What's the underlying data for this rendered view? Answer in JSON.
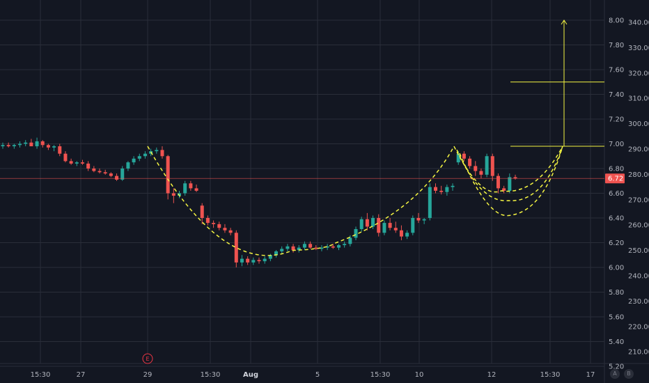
{
  "chart_data": {
    "type": "candlestick",
    "symbol_price_last": "6.72",
    "colors": {
      "background": "#131722",
      "up": "#26a69a",
      "down": "#ef5350",
      "annotation": "#f5f542",
      "price_line": "#ef5350",
      "grid": "#2a2e39",
      "axis_text": "#b2b5be"
    },
    "x_axis": {
      "tick_labels": [
        "15:30",
        "27",
        "29",
        "15:30",
        "Aug",
        "5",
        "15:30",
        "10",
        "12",
        "15:30",
        "17"
      ],
      "bold_labels": [
        "Aug"
      ]
    },
    "y_axis_inner": {
      "ticks": [
        "8.00",
        "7.80",
        "7.60",
        "7.40",
        "7.20",
        "7.00",
        "6.80",
        "6.60",
        "6.40",
        "6.20",
        "6.00",
        "5.80",
        "5.60",
        "5.40",
        "5.20"
      ],
      "range": [
        5.18,
        8.08
      ]
    },
    "y_axis_outer": {
      "ticks": [
        "340.00",
        "330.00",
        "320.00",
        "310.00",
        "300.00",
        "290.00",
        "280.00",
        "270.00",
        "260.00",
        "250.00",
        "240.00",
        "230.00",
        "220.00",
        "210.00"
      ]
    },
    "last_price": 6.72,
    "candles": [
      [
        6.98,
        7.01,
        6.96,
        6.99
      ],
      [
        6.99,
        7.01,
        6.97,
        6.98
      ],
      [
        6.98,
        7.0,
        6.96,
        6.99
      ],
      [
        6.99,
        7.02,
        6.97,
        7.0
      ],
      [
        7.0,
        7.03,
        6.98,
        7.01
      ],
      [
        7.01,
        7.04,
        6.99,
        6.98
      ],
      [
        6.98,
        7.05,
        6.96,
        7.02
      ],
      [
        7.02,
        7.03,
        6.97,
        6.99
      ],
      [
        6.99,
        7.0,
        6.95,
        6.97
      ],
      [
        6.97,
        6.99,
        6.94,
        6.98
      ],
      [
        6.98,
        7.0,
        6.9,
        6.92
      ],
      [
        6.92,
        6.94,
        6.85,
        6.86
      ],
      [
        6.86,
        6.88,
        6.83,
        6.84
      ],
      [
        6.84,
        6.86,
        6.82,
        6.85
      ],
      [
        6.85,
        6.87,
        6.83,
        6.84
      ],
      [
        6.84,
        6.86,
        6.78,
        6.8
      ],
      [
        6.8,
        6.82,
        6.77,
        6.78
      ],
      [
        6.78,
        6.8,
        6.76,
        6.77
      ],
      [
        6.77,
        6.79,
        6.75,
        6.76
      ],
      [
        6.76,
        6.77,
        6.73,
        6.74
      ],
      [
        6.74,
        6.76,
        6.7,
        6.71
      ],
      [
        6.71,
        6.82,
        6.7,
        6.8
      ],
      [
        6.8,
        6.86,
        6.78,
        6.85
      ],
      [
        6.85,
        6.9,
        6.83,
        6.88
      ],
      [
        6.88,
        6.92,
        6.86,
        6.9
      ],
      [
        6.9,
        6.94,
        6.88,
        6.92
      ],
      [
        6.92,
        6.96,
        6.9,
        6.94
      ],
      [
        6.94,
        6.97,
        6.92,
        6.95
      ],
      [
        6.95,
        6.98,
        6.88,
        6.9
      ],
      [
        6.9,
        6.91,
        6.55,
        6.6
      ],
      [
        6.6,
        6.64,
        6.52,
        6.58
      ],
      [
        6.58,
        6.62,
        6.56,
        6.6
      ],
      [
        6.6,
        6.7,
        6.58,
        6.68
      ],
      [
        6.68,
        6.7,
        6.62,
        6.64
      ],
      [
        6.64,
        6.67,
        6.61,
        6.62
      ],
      [
        6.5,
        6.52,
        6.35,
        6.4
      ],
      [
        6.4,
        6.42,
        6.34,
        6.36
      ],
      [
        6.36,
        6.38,
        6.32,
        6.35
      ],
      [
        6.35,
        6.37,
        6.3,
        6.32
      ],
      [
        6.32,
        6.35,
        6.28,
        6.3
      ],
      [
        6.3,
        6.32,
        6.26,
        6.28
      ],
      [
        6.28,
        6.3,
        6.0,
        6.04
      ],
      [
        6.04,
        6.1,
        6.01,
        6.07
      ],
      [
        6.07,
        6.09,
        6.02,
        6.04
      ],
      [
        6.04,
        6.08,
        6.02,
        6.06
      ],
      [
        6.06,
        6.08,
        6.03,
        6.05
      ],
      [
        6.05,
        6.09,
        6.03,
        6.07
      ],
      [
        6.07,
        6.11,
        6.05,
        6.1
      ],
      [
        6.1,
        6.14,
        6.08,
        6.13
      ],
      [
        6.13,
        6.17,
        6.11,
        6.15
      ],
      [
        6.15,
        6.19,
        6.13,
        6.17
      ],
      [
        6.17,
        6.19,
        6.12,
        6.14
      ],
      [
        6.14,
        6.18,
        6.12,
        6.16
      ],
      [
        6.16,
        6.21,
        6.14,
        6.19
      ],
      [
        6.19,
        6.21,
        6.15,
        6.16
      ],
      [
        6.16,
        6.18,
        6.14,
        6.15
      ],
      [
        6.15,
        6.18,
        6.13,
        6.16
      ],
      [
        6.16,
        6.19,
        6.14,
        6.17
      ],
      [
        6.17,
        6.19,
        6.15,
        6.16
      ],
      [
        6.16,
        6.19,
        6.14,
        6.18
      ],
      [
        6.18,
        6.21,
        6.16,
        6.19
      ],
      [
        6.19,
        6.26,
        6.17,
        6.24
      ],
      [
        6.24,
        6.33,
        6.22,
        6.31
      ],
      [
        6.31,
        6.41,
        6.29,
        6.39
      ],
      [
        6.39,
        6.44,
        6.3,
        6.33
      ],
      [
        6.33,
        6.42,
        6.31,
        6.4
      ],
      [
        6.4,
        6.43,
        6.25,
        6.28
      ],
      [
        6.28,
        6.38,
        6.26,
        6.36
      ],
      [
        6.36,
        6.4,
        6.3,
        6.32
      ],
      [
        6.32,
        6.37,
        6.28,
        6.3
      ],
      [
        6.3,
        6.34,
        6.22,
        6.25
      ],
      [
        6.25,
        6.3,
        6.23,
        6.28
      ],
      [
        6.28,
        6.42,
        6.26,
        6.4
      ],
      [
        6.4,
        6.44,
        6.36,
        6.38
      ],
      [
        6.38,
        6.4,
        6.35,
        6.39
      ],
      [
        6.4,
        6.68,
        6.38,
        6.65
      ],
      [
        6.65,
        6.68,
        6.6,
        6.62
      ],
      [
        6.62,
        6.66,
        6.59,
        6.61
      ],
      [
        6.61,
        6.67,
        6.58,
        6.65
      ],
      [
        6.65,
        6.68,
        6.62,
        6.66
      ],
      [
        6.85,
        6.94,
        6.83,
        6.92
      ],
      [
        6.92,
        6.94,
        6.86,
        6.88
      ],
      [
        6.88,
        6.9,
        6.8,
        6.82
      ],
      [
        6.82,
        6.86,
        6.74,
        6.78
      ],
      [
        6.78,
        6.8,
        6.72,
        6.75
      ],
      [
        6.75,
        6.92,
        6.73,
        6.9
      ],
      [
        6.9,
        6.92,
        6.7,
        6.74
      ],
      [
        6.74,
        6.76,
        6.6,
        6.64
      ],
      [
        6.64,
        6.66,
        6.6,
        6.62
      ],
      [
        6.62,
        6.76,
        6.6,
        6.73
      ],
      [
        6.73,
        6.75,
        6.71,
        6.72
      ]
    ],
    "annotations": {
      "cup_rim_price": 6.98,
      "cup_bottom_price": 6.16,
      "target_top_price": 8.0,
      "mid_target_price": 7.5
    }
  },
  "earnings_marker": "E",
  "corner_buttons": {
    "auto": "A",
    "log": "B"
  }
}
